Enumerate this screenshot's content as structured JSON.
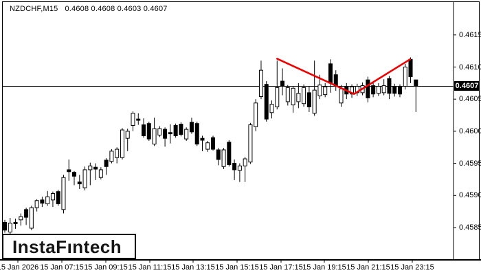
{
  "header": {
    "symbol": "NZDCHF,M15",
    "ohlc": "0.4608 0.4608 0.4603 0.4607"
  },
  "logo": {
    "text": "InstaFıntech"
  },
  "colors": {
    "background": "#FFFFFF",
    "frame": "#000000",
    "bull_fill": "#FFFFFF",
    "bear_fill": "#000000",
    "candle_outline": "#000000",
    "wick": "#000000",
    "horizontal_line": "#000000",
    "trendline": "#EE0000",
    "price_tag_bg": "#000000",
    "price_tag_text": "#FFFFFF"
  },
  "chart_data": {
    "type": "candlestick",
    "title": "NZDCHF,M15",
    "symbol": "NZDCHF",
    "timeframe": "M15",
    "latest_ohlc": {
      "open": 0.4608,
      "high": 0.4608,
      "low": 0.4603,
      "close": 0.4607
    },
    "current_price": "0.4607",
    "horizontal_line_price": 0.4607,
    "grid": false,
    "legend": false,
    "y_axis": {
      "side": "right",
      "range": [
        0.4583,
        0.4617
      ],
      "ticks": [
        "0.4615",
        "0.4610",
        "0.4605",
        "0.4600",
        "0.4595",
        "0.4590",
        "0.4585"
      ]
    },
    "x_axis": {
      "ticks": [
        "15 Jan 2026",
        "15 Jan 07:15",
        "15 Jan 09:15",
        "15 Jan 11:15",
        "15 Jan 13:15",
        "15 Jan 15:15",
        "15 Jan 17:15",
        "15 Jan 19:15",
        "15 Jan 21:15",
        "15 Jan 23:15"
      ],
      "tick_x": [
        26,
        90,
        154,
        218,
        281,
        345,
        409,
        472,
        536,
        600
      ]
    },
    "trendline": {
      "shape": "zigzag",
      "color": "#EE0000",
      "points": [
        [
          51,
          0.46113
        ],
        [
          65.4,
          0.46058
        ],
        [
          75.9,
          0.46112
        ]
      ]
    },
    "candles": [
      [
        0.45858,
        0.45862,
        0.45842,
        0.45846
      ],
      [
        0.45843,
        0.45865,
        0.45839,
        0.45857
      ],
      [
        0.45858,
        0.45864,
        0.45848,
        0.45856
      ],
      [
        0.45862,
        0.45872,
        0.45853,
        0.45867
      ],
      [
        0.45878,
        0.45881,
        0.45854,
        0.45866
      ],
      [
        0.45849,
        0.45884,
        0.45846,
        0.45881
      ],
      [
        0.45881,
        0.45894,
        0.45875,
        0.45892
      ],
      [
        0.45893,
        0.45898,
        0.45882,
        0.45888
      ],
      [
        0.45887,
        0.45907,
        0.45884,
        0.45898
      ],
      [
        0.45893,
        0.45906,
        0.45882,
        0.45903
      ],
      [
        0.45906,
        0.45909,
        0.45884,
        0.45887
      ],
      [
        0.45878,
        0.45932,
        0.45872,
        0.45928
      ],
      [
        0.4594,
        0.45956,
        0.45923,
        0.45937
      ],
      [
        0.45936,
        0.45938,
        0.45916,
        0.4593
      ],
      [
        0.45921,
        0.45932,
        0.4591,
        0.45918
      ],
      [
        0.45912,
        0.45945,
        0.45908,
        0.4594
      ],
      [
        0.4594,
        0.45951,
        0.45916,
        0.45946
      ],
      [
        0.45944,
        0.4595,
        0.45924,
        0.45941
      ],
      [
        0.45928,
        0.45944,
        0.45925,
        0.4594
      ],
      [
        0.45955,
        0.45958,
        0.45932,
        0.45945
      ],
      [
        0.45953,
        0.45972,
        0.4595,
        0.45969
      ],
      [
        0.45959,
        0.45975,
        0.4595,
        0.45972
      ],
      [
        0.45959,
        0.46005,
        0.45956,
        0.46002
      ],
      [
        0.45989,
        0.46004,
        0.45969,
        0.46
      ],
      [
        0.46009,
        0.46031,
        0.46,
        0.46028
      ],
      [
        0.46019,
        0.46028,
        0.4601,
        0.46017
      ],
      [
        0.4601,
        0.4602,
        0.4599,
        0.45993
      ],
      [
        0.46012,
        0.46015,
        0.45985,
        0.45988
      ],
      [
        0.4598,
        0.46021,
        0.45977,
        0.46004
      ],
      [
        0.45994,
        0.46008,
        0.45991,
        0.46004
      ],
      [
        0.46003,
        0.46006,
        0.45976,
        0.45989
      ],
      [
        0.45998,
        0.46011,
        0.45981,
        0.45996
      ],
      [
        0.46009,
        0.46012,
        0.4599,
        0.45993
      ],
      [
        0.46011,
        0.46014,
        0.45992,
        0.45995
      ],
      [
        0.45988,
        0.46006,
        0.45985,
        0.46003
      ],
      [
        0.46014,
        0.46021,
        0.45996,
        0.45999
      ],
      [
        0.46012,
        0.46015,
        0.45977,
        0.4598
      ],
      [
        0.45989,
        0.45993,
        0.45969,
        0.45986
      ],
      [
        0.45972,
        0.45985,
        0.45968,
        0.45982
      ],
      [
        0.4599,
        0.45993,
        0.4597,
        0.45972
      ],
      [
        0.45971,
        0.45974,
        0.45947,
        0.45956
      ],
      [
        0.45945,
        0.45974,
        0.45941,
        0.45971
      ],
      [
        0.45983,
        0.45986,
        0.45945,
        0.45948
      ],
      [
        0.4595,
        0.45956,
        0.45924,
        0.4594
      ],
      [
        0.45939,
        0.4595,
        0.45921,
        0.45946
      ],
      [
        0.45946,
        0.4596,
        0.45921,
        0.45957
      ],
      [
        0.45952,
        0.46013,
        0.45949,
        0.4601
      ],
      [
        0.46007,
        0.4605,
        0.46,
        0.46044
      ],
      [
        0.46054,
        0.4611,
        0.4605,
        0.46095
      ],
      [
        0.46073,
        0.46078,
        0.46015,
        0.46019
      ],
      [
        0.46029,
        0.46048,
        0.4602,
        0.46042
      ],
      [
        0.46038,
        0.4611,
        0.46034,
        0.46068
      ],
      [
        0.46078,
        0.46098,
        0.46056,
        0.4607
      ],
      [
        0.46046,
        0.46072,
        0.4604,
        0.46068
      ],
      [
        0.46041,
        0.4607,
        0.46029,
        0.46067
      ],
      [
        0.46046,
        0.46075,
        0.46036,
        0.46059
      ],
      [
        0.46043,
        0.46073,
        0.46038,
        0.46068
      ],
      [
        0.4606,
        0.4607,
        0.4603,
        0.46038
      ],
      [
        0.46028,
        0.4611,
        0.46024,
        0.46064
      ],
      [
        0.46055,
        0.46088,
        0.4605,
        0.46072
      ],
      [
        0.46057,
        0.46075,
        0.46053,
        0.46069
      ],
      [
        0.46105,
        0.46112,
        0.4606,
        0.46075
      ],
      [
        0.46088,
        0.46095,
        0.46063,
        0.4607
      ],
      [
        0.46044,
        0.46072,
        0.46038,
        0.46066
      ],
      [
        0.46069,
        0.46075,
        0.4605,
        0.46058
      ],
      [
        0.46058,
        0.46073,
        0.46052,
        0.46069
      ],
      [
        0.4606,
        0.46074,
        0.46055,
        0.4607
      ],
      [
        0.4606,
        0.46076,
        0.46056,
        0.46071
      ],
      [
        0.4608,
        0.46085,
        0.46045,
        0.46052
      ],
      [
        0.46071,
        0.46076,
        0.46053,
        0.46058
      ],
      [
        0.46059,
        0.46075,
        0.46055,
        0.4607
      ],
      [
        0.4606,
        0.46081,
        0.46056,
        0.46071
      ],
      [
        0.46082,
        0.46086,
        0.4605,
        0.46059
      ],
      [
        0.4607,
        0.46074,
        0.46054,
        0.46059
      ],
      [
        0.4607,
        0.46073,
        0.46053,
        0.46058
      ],
      [
        0.4607,
        0.46105,
        0.46065,
        0.461
      ],
      [
        0.46112,
        0.46115,
        0.46075,
        0.46085
      ],
      [
        0.4608,
        0.4608,
        0.4603,
        0.4607
      ]
    ]
  }
}
